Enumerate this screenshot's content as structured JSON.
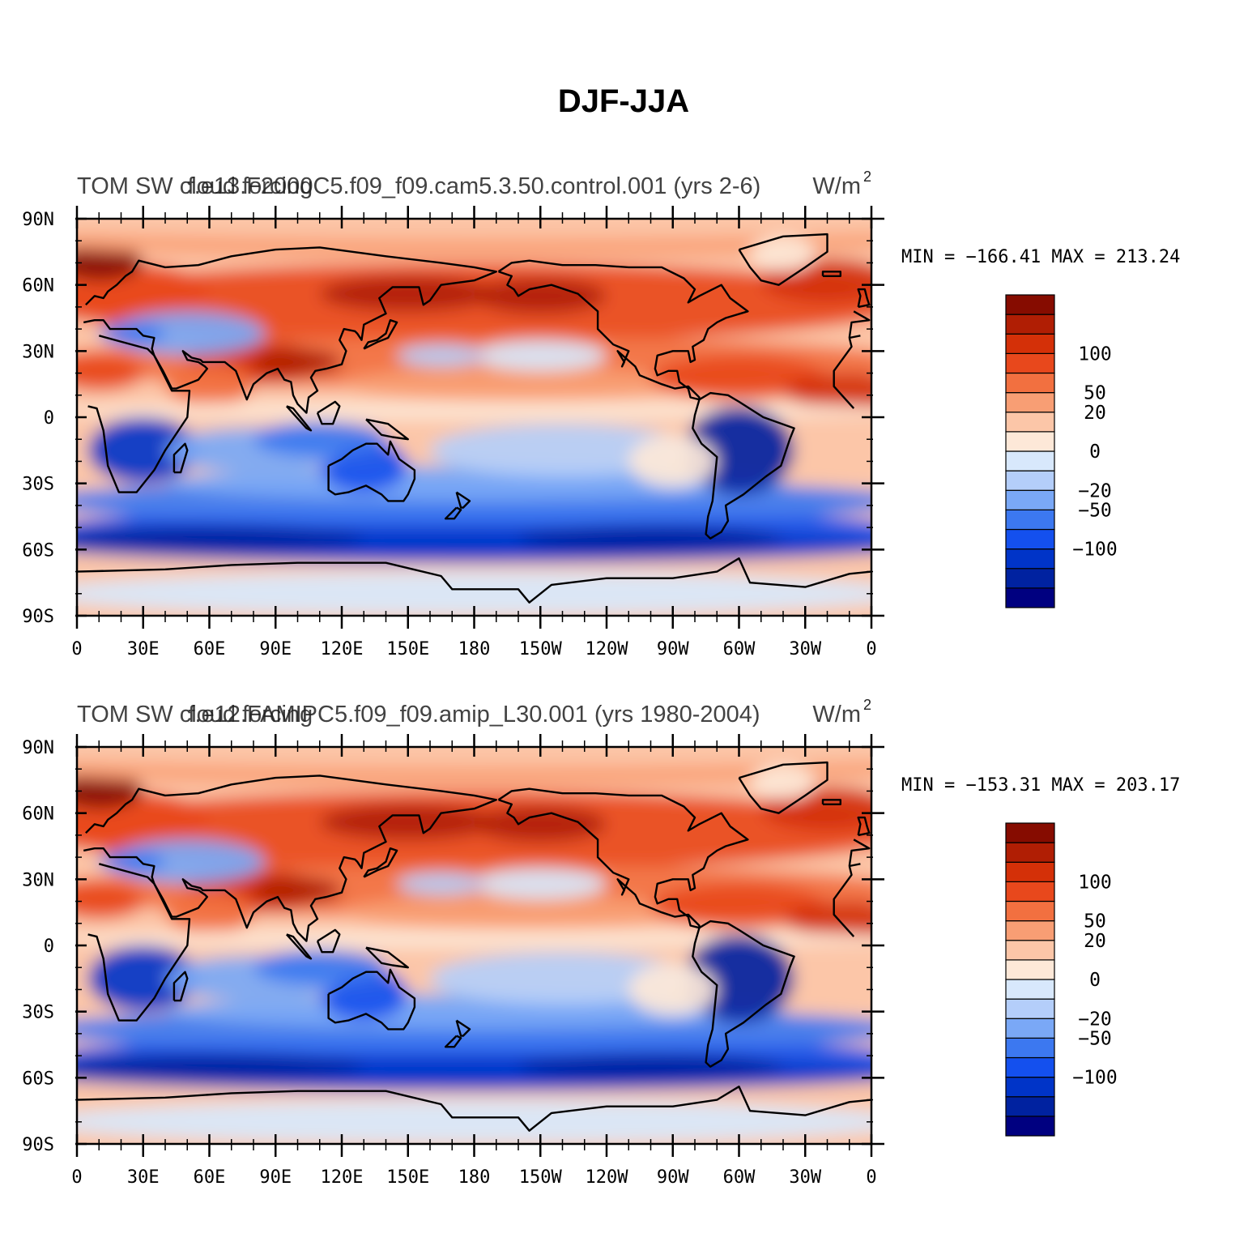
{
  "title": "DJF-JJA",
  "panels": [
    {
      "left_title": "TOM SW cloud forcing",
      "center_title": "f.e13.F2000C5.f09_f09.cam5.3.50.control.001 (yrs 2-6)",
      "units": "W/m",
      "units_exp": "2",
      "stats": "MIN = −166.41  MAX = 213.24",
      "min": -166.41,
      "max": 213.24
    },
    {
      "left_title": "TOM SW cloud forcing",
      "center_title": "f.e12.FAMIPC5.f09_f09.amip_L30.001 (yrs 1980-2004)",
      "units": "W/m",
      "units_exp": "2",
      "stats": "MIN = −153.31  MAX = 203.17",
      "min": -153.31,
      "max": 203.17
    }
  ],
  "axes": {
    "y_ticks": [
      "90N",
      "60N",
      "30N",
      "0",
      "30S",
      "60S",
      "90S"
    ],
    "x_ticks": [
      "0",
      "30E",
      "60E",
      "90E",
      "120E",
      "150E",
      "180",
      "150W",
      "120W",
      "90W",
      "60W",
      "30W",
      "0"
    ]
  },
  "colorbar": {
    "colors": [
      "#000080",
      "#0022a0",
      "#0034c8",
      "#1450ee",
      "#3c78f0",
      "#7aa8f6",
      "#b4cefa",
      "#d8e8fc",
      "#fde8d8",
      "#fcc6a8",
      "#f89e74",
      "#f27040",
      "#e8481c",
      "#d43008",
      "#b01e04",
      "#860c00"
    ],
    "labels": [
      "−100",
      "−50",
      "−20",
      "0",
      "20",
      "50",
      "100"
    ]
  },
  "chart_data": {
    "type": "heatmap",
    "title": "DJF-JJA",
    "variable": "TOM SW cloud forcing",
    "units": "W/m2",
    "x_ticks": [
      "0",
      "30E",
      "60E",
      "90E",
      "120E",
      "150E",
      "180",
      "150W",
      "120W",
      "90W",
      "60W",
      "30W",
      "0"
    ],
    "y_ticks": [
      "90N",
      "60N",
      "30N",
      "0",
      "30S",
      "60S",
      "90S"
    ],
    "xlim": [
      0,
      360
    ],
    "ylim": [
      -90,
      90
    ],
    "colorbar_labels": [
      -100,
      -50,
      -20,
      0,
      20,
      50,
      100
    ],
    "panels": [
      {
        "case": "f.e13.F2000C5.f09_f09.cam5.3.50.control.001 (yrs 2-6)",
        "min": -166.41,
        "max": 213.24
      },
      {
        "case": "f.e12.FAMIPC5.f09_f09.amip_L30.001 (yrs 1980-2004)",
        "min": -153.31,
        "max": 203.17
      }
    ]
  }
}
